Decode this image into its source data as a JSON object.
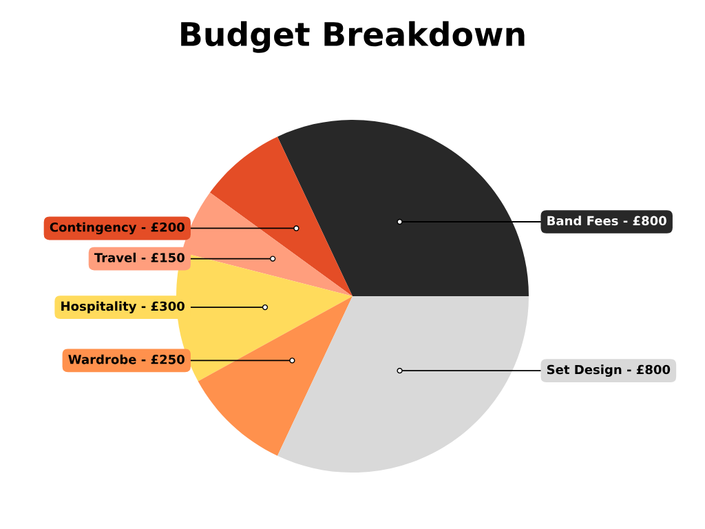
{
  "chart_data": {
    "type": "pie",
    "title": "Budget Breakdown",
    "categories": [
      "Band Fees",
      "Contingency",
      "Travel",
      "Hospitality",
      "Wardrobe",
      "Set Design"
    ],
    "values": [
      800,
      200,
      150,
      300,
      250,
      800
    ],
    "value_labels": [
      "£800",
      "£200",
      "£150",
      "£300",
      "£250",
      "£800"
    ],
    "colors": [
      "#282828",
      "#e44d26",
      "#ff9e7d",
      "#ffdb5c",
      "#ff914d",
      "#d9d9d9"
    ],
    "legend": false
  }
}
